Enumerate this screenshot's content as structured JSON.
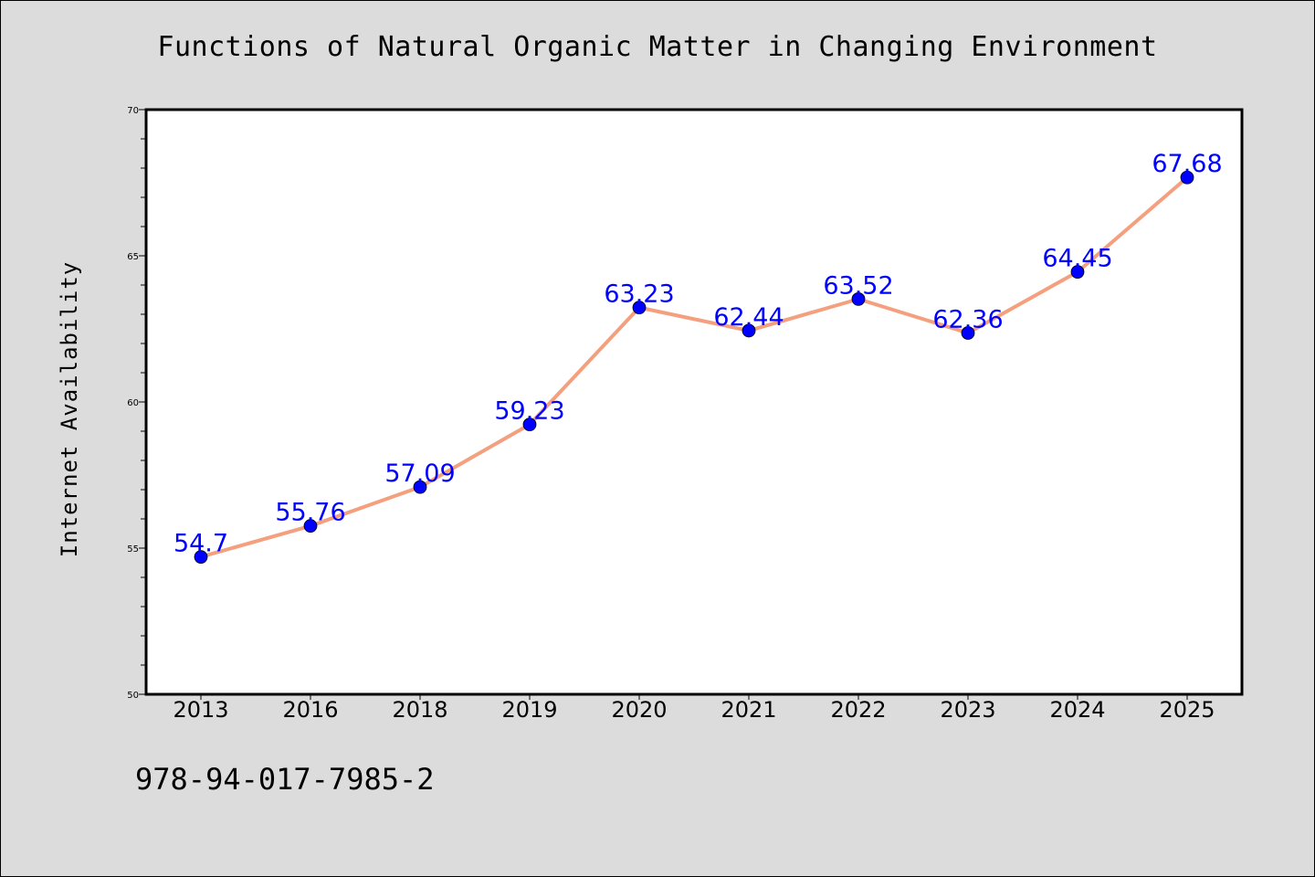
{
  "footer_id": "978-94-017-7985-2",
  "chart_data": {
    "type": "line",
    "title": "Functions of Natural Organic Matter in Changing Environment",
    "xlabel": "",
    "ylabel": "Internet Availability",
    "categories": [
      "2013",
      "2016",
      "2018",
      "2019",
      "2020",
      "2021",
      "2022",
      "2023",
      "2024",
      "2025"
    ],
    "series": [
      {
        "values": [
          54.7,
          55.76,
          57.09,
          59.23,
          63.23,
          62.44,
          63.52,
          62.36,
          64.45,
          67.68
        ],
        "data_labels": [
          "54.7",
          "55.76",
          "57.09",
          "59.23",
          "63.23",
          "62.44",
          "63.52",
          "62.36",
          "64.45",
          "67.68"
        ],
        "line_color": "#f4a07e",
        "marker_color": "#0000ff"
      }
    ],
    "ylim": [
      50,
      70
    ],
    "yticks": [
      "50",
      "55",
      "60",
      "65",
      "70"
    ],
    "grid": false,
    "legend": "none",
    "colors": {
      "background": "#dcdcdc",
      "plot_background": "#ffffff"
    }
  }
}
